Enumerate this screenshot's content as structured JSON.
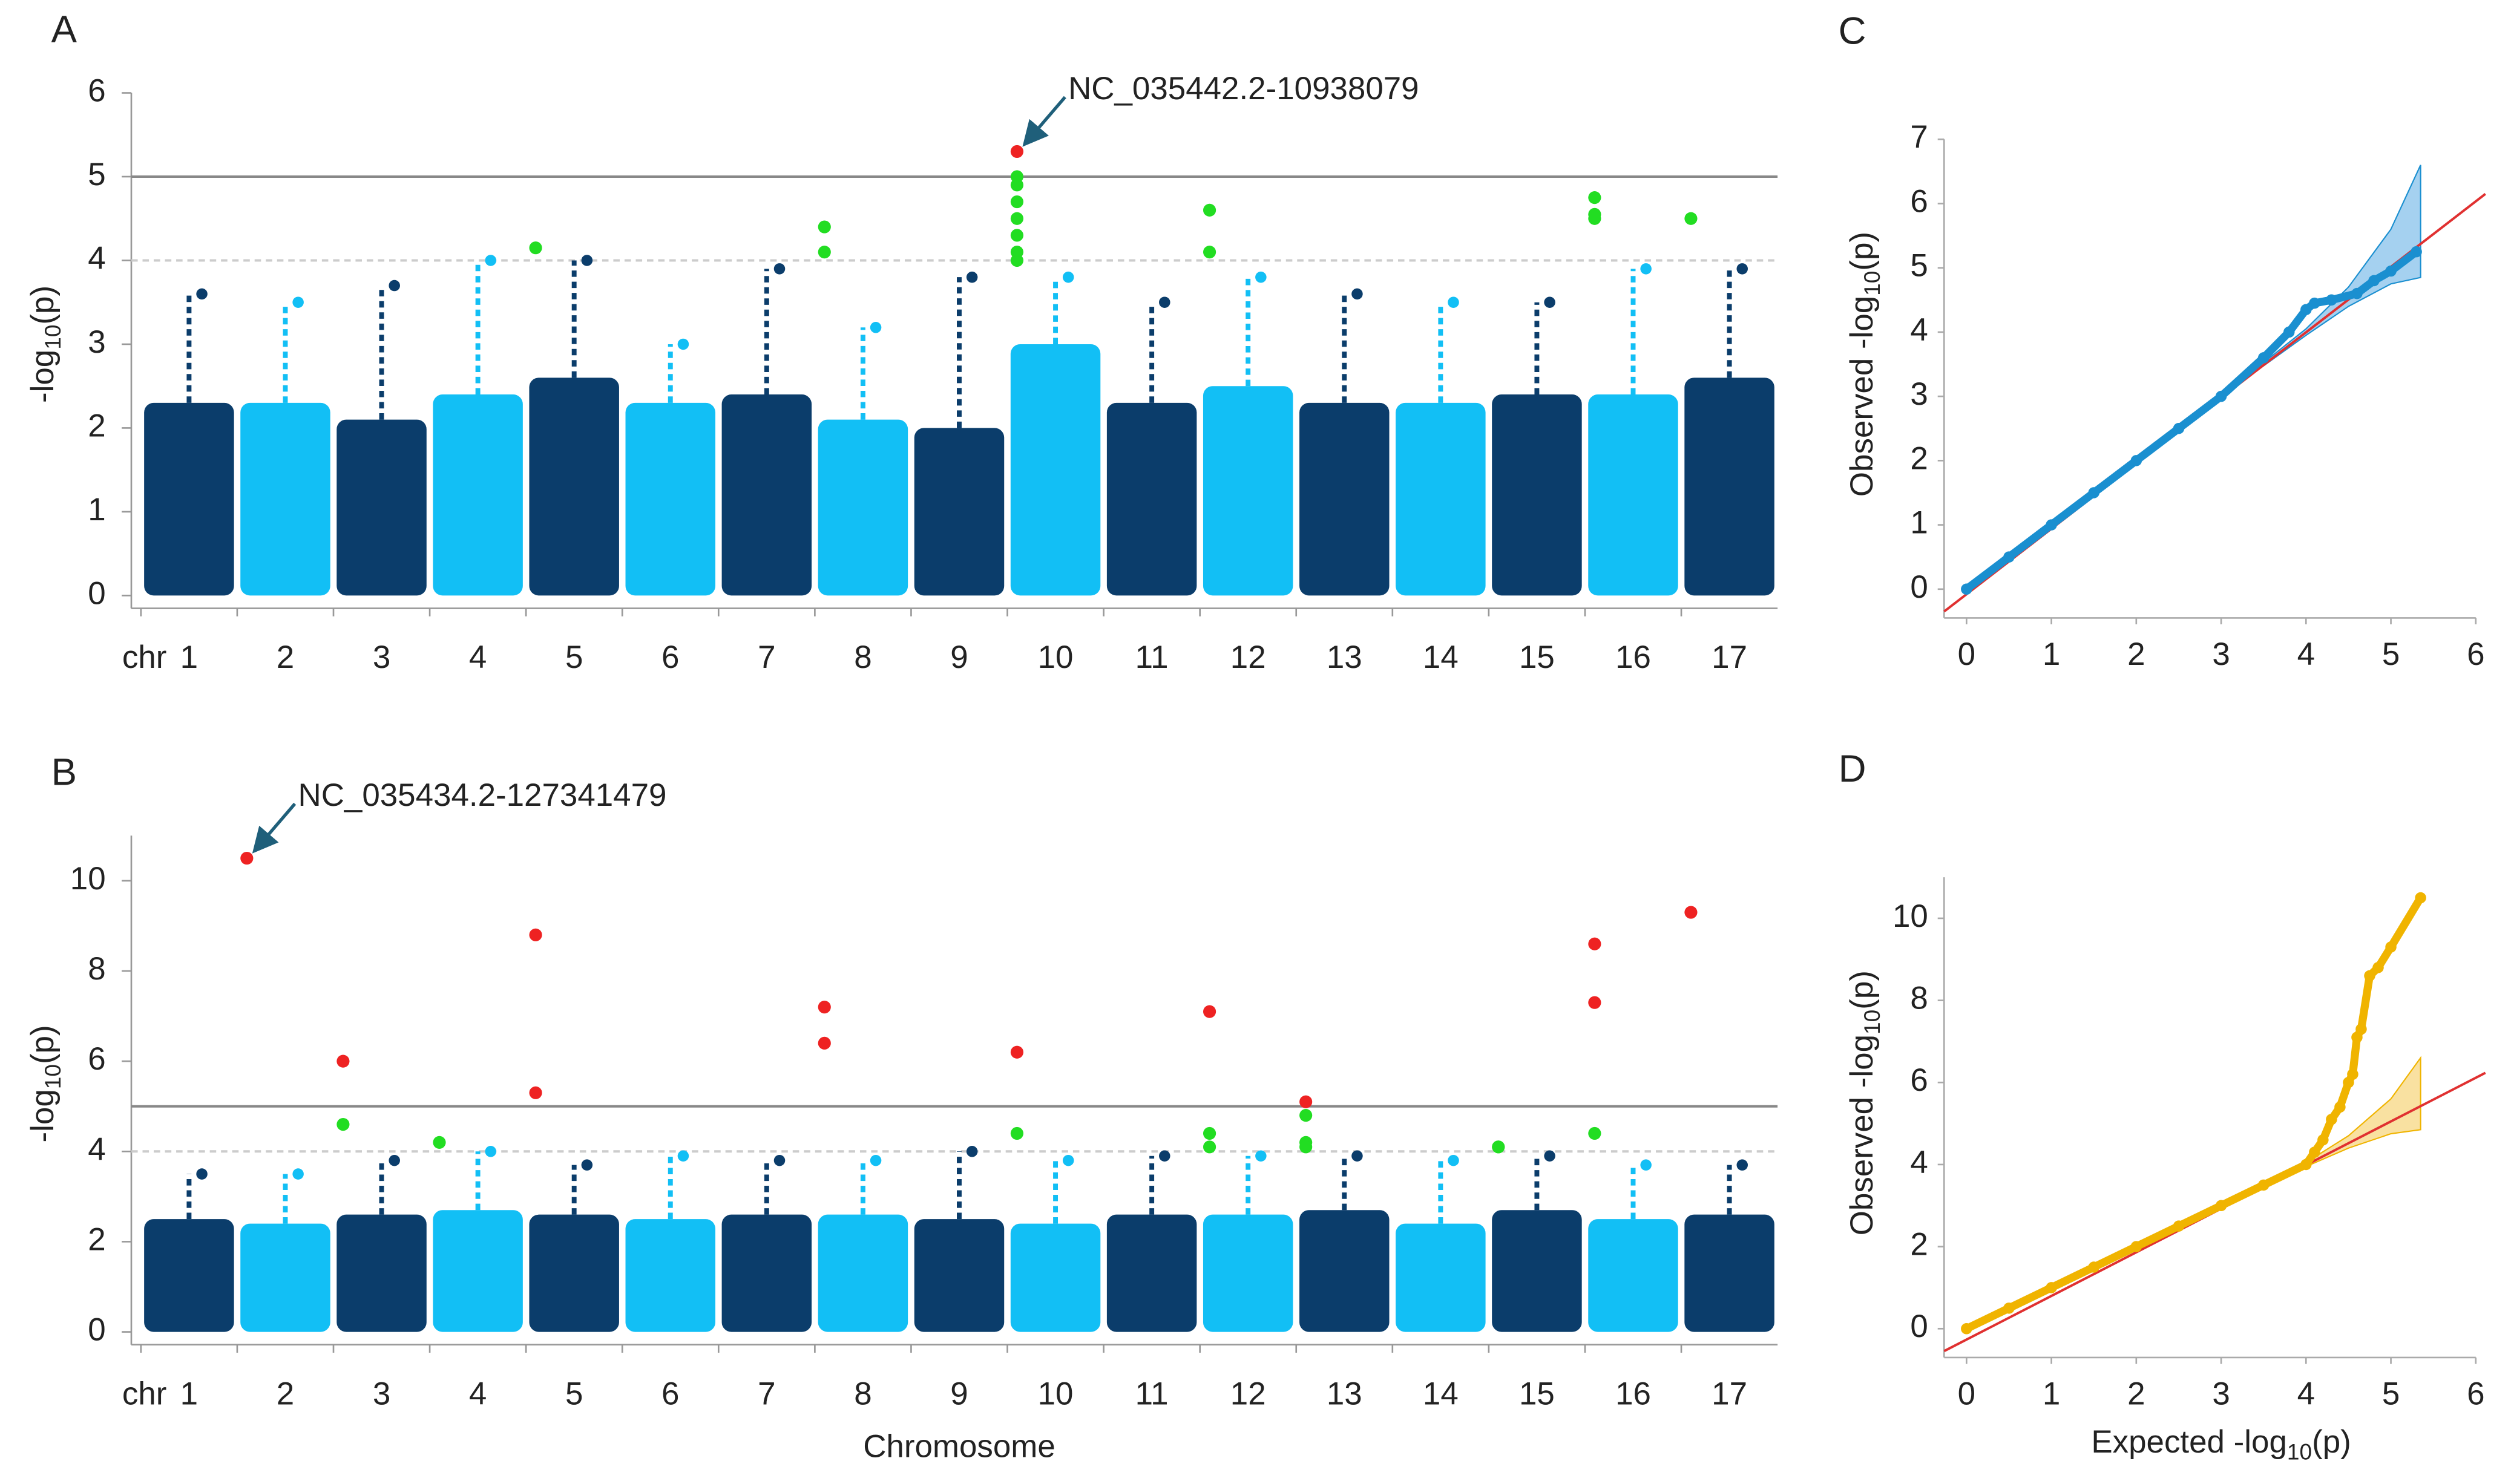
{
  "chart_data": [
    {
      "type": "manhattan",
      "panel": "A",
      "axis_prefix": "chr",
      "y_label": {
        "prefix": "-log",
        "sub": "10",
        "suffix": "(p)"
      },
      "categories": [
        "1",
        "2",
        "3",
        "4",
        "5",
        "6",
        "7",
        "8",
        "9",
        "10",
        "11",
        "12",
        "13",
        "14",
        "15",
        "16",
        "17"
      ],
      "colors": [
        "#0b3d6b",
        "#12bff5"
      ],
      "values": [
        3.6,
        3.5,
        3.7,
        4.0,
        4.0,
        3.0,
        3.9,
        3.2,
        3.8,
        3.8,
        3.5,
        3.8,
        3.6,
        3.5,
        3.5,
        3.9,
        3.9
      ],
      "body": [
        2.3,
        2.3,
        2.1,
        2.4,
        2.6,
        2.3,
        2.4,
        2.1,
        2.0,
        3.0,
        2.3,
        2.5,
        2.3,
        2.3,
        2.4,
        2.4,
        2.6
      ],
      "ylim": [
        0,
        6
      ],
      "yticks": [
        0,
        1,
        2,
        3,
        4,
        5,
        6
      ],
      "hlines": [
        {
          "value": 5,
          "color": "#888888",
          "dash": false
        },
        {
          "value": 4,
          "color": "#cccccc",
          "dash": true
        }
      ],
      "highlights": [
        {
          "color": "#22dd22",
          "categories": [
            "5",
            "8",
            "8",
            "10",
            "10",
            "10",
            "10",
            "10",
            "10",
            "10",
            "12",
            "12",
            "16",
            "16",
            "16",
            "17"
          ],
          "values": [
            4.15,
            4.4,
            4.1,
            5.0,
            4.9,
            4.7,
            4.5,
            4.3,
            4.1,
            4.0,
            4.6,
            4.1,
            4.75,
            4.55,
            4.5,
            4.5
          ]
        },
        {
          "color": "#ee2222",
          "categories": [
            "10"
          ],
          "values": [
            5.3
          ]
        }
      ],
      "annotation": "NC_035442.2-10938079",
      "annotation_color": "#1a1aff"
    },
    {
      "type": "manhattan",
      "panel": "B",
      "axis_prefix": "chr",
      "x_label": "Chromosome",
      "y_label": {
        "prefix": "-log",
        "sub": "10",
        "suffix": "(p)"
      },
      "categories": [
        "1",
        "2",
        "3",
        "4",
        "5",
        "6",
        "7",
        "8",
        "9",
        "10",
        "11",
        "12",
        "13",
        "14",
        "15",
        "16",
        "17"
      ],
      "colors": [
        "#0b3d6b",
        "#12bff5"
      ],
      "values": [
        3.5,
        3.5,
        3.8,
        4.0,
        3.7,
        3.9,
        3.8,
        3.8,
        4.0,
        3.8,
        3.9,
        3.9,
        3.9,
        3.8,
        3.9,
        3.7,
        3.7
      ],
      "body": [
        2.5,
        2.4,
        2.6,
        2.7,
        2.6,
        2.5,
        2.6,
        2.6,
        2.5,
        2.4,
        2.6,
        2.6,
        2.7,
        2.4,
        2.7,
        2.5,
        2.6
      ],
      "ylim": [
        0,
        11
      ],
      "yticks": [
        0,
        2,
        4,
        6,
        8,
        10
      ],
      "hlines": [
        {
          "value": 5,
          "color": "#888888",
          "dash": false
        },
        {
          "value": 4,
          "color": "#cccccc",
          "dash": true
        }
      ],
      "highlights": [
        {
          "color": "#22dd22",
          "categories": [
            "3",
            "4",
            "10",
            "12",
            "12",
            "13",
            "13",
            "13",
            "15",
            "15",
            "16"
          ],
          "values": [
            4.6,
            4.2,
            4.4,
            4.4,
            4.1,
            4.8,
            4.2,
            4.1,
            4.1,
            4.1,
            4.4
          ]
        },
        {
          "color": "#ee2222",
          "categories": [
            "2",
            "3",
            "5",
            "5",
            "8",
            "8",
            "10",
            "12",
            "13",
            "16",
            "16",
            "17"
          ],
          "values": [
            10.5,
            6.0,
            8.8,
            5.3,
            6.4,
            7.2,
            6.2,
            7.1,
            5.1,
            8.6,
            7.3,
            9.3
          ]
        }
      ],
      "annotation": "NC_035434.2-127341479",
      "annotation_color": "#1a1aff"
    },
    {
      "type": "qq",
      "panel": "C",
      "y_label": {
        "prefix": "Observed -log",
        "sub": "10",
        "suffix": "(p)"
      },
      "x": [
        0,
        0.5,
        1,
        1.5,
        2,
        2.5,
        3,
        3.5,
        3.8,
        4.0,
        4.1,
        4.3,
        4.6,
        4.8,
        5.0,
        5.3
      ],
      "values": [
        0,
        0.5,
        1,
        1.5,
        2,
        2.5,
        3.0,
        3.6,
        4.0,
        4.35,
        4.45,
        4.5,
        4.6,
        4.8,
        4.95,
        5.25
      ],
      "color": "#1a8fd0",
      "band": {
        "x": [
          3,
          4,
          4.5,
          5,
          5.35
        ],
        "lower": [
          3,
          3.95,
          4.4,
          4.75,
          4.85
        ],
        "upper": [
          3,
          4.05,
          4.7,
          5.6,
          6.6
        ],
        "color": "#8ec5ec"
      },
      "reference_color": "#e03030",
      "xlim": [
        0,
        6
      ],
      "xticks": [
        0,
        1,
        2,
        3,
        4,
        5,
        6
      ],
      "ylim": [
        0,
        7
      ],
      "yticks": [
        0,
        1,
        2,
        3,
        4,
        5,
        6,
        7
      ]
    },
    {
      "type": "qq",
      "panel": "D",
      "y_label": {
        "prefix": "Observed -log",
        "sub": "10",
        "suffix": "(p)"
      },
      "x_label": {
        "prefix": "Expected -log",
        "sub": "10",
        "suffix": "(p)"
      },
      "x": [
        0,
        0.5,
        1,
        1.5,
        2,
        2.5,
        3,
        3.5,
        4.0,
        4.1,
        4.2,
        4.3,
        4.4,
        4.5,
        4.55,
        4.6,
        4.65,
        4.75,
        4.85,
        5.0,
        5.35
      ],
      "values": [
        0,
        0.5,
        1,
        1.5,
        2,
        2.5,
        3,
        3.5,
        4.0,
        4.3,
        4.6,
        5.1,
        5.4,
        6.0,
        6.2,
        7.1,
        7.3,
        8.6,
        8.8,
        9.3,
        10.5
      ],
      "color": "#f0b400",
      "band": {
        "x": [
          3,
          4,
          4.5,
          5,
          5.35
        ],
        "lower": [
          3,
          3.95,
          4.4,
          4.75,
          4.85
        ],
        "upper": [
          3,
          4.05,
          4.7,
          5.6,
          6.6
        ],
        "color": "#f7d98a"
      },
      "reference_color": "#e03030",
      "xlim": [
        0,
        6
      ],
      "xticks": [
        0,
        1,
        2,
        3,
        4,
        5,
        6
      ],
      "ylim": [
        0,
        11
      ],
      "yticks": [
        0,
        2,
        4,
        6,
        8,
        10
      ]
    }
  ]
}
